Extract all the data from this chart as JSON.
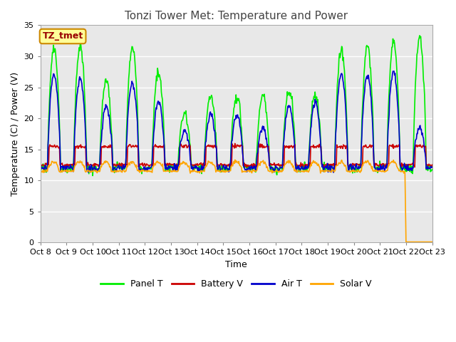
{
  "title": "Tonzi Tower Met: Temperature and Power",
  "xlabel": "Time",
  "ylabel": "Temperature (C) / Power (V)",
  "ylim": [
    0,
    35
  ],
  "yticks": [
    0,
    5,
    10,
    15,
    20,
    25,
    30,
    35
  ],
  "background_color": "#ffffff",
  "plot_bg_color": "#e8e8e8",
  "grid_color": "#ffffff",
  "colors": {
    "panel_t": "#00ee00",
    "battery_v": "#cc0000",
    "air_t": "#0000cc",
    "solar_v": "#ffa500"
  },
  "x_tick_labels": [
    "Oct 8",
    "Oct 9",
    "Oct 10",
    "Oct 11",
    "Oct 12",
    "Oct 13",
    "Oct 14",
    "Oct 15",
    "Oct 16",
    "Oct 17",
    "Oct 18",
    "Oct 19",
    "Oct 20",
    "Oct 21",
    "Oct 22",
    "Oct 23"
  ],
  "annotation_text": "TZ_tmet",
  "annotation_color": "#990000",
  "annotation_bg": "#ffff99",
  "linewidth": 1.2
}
